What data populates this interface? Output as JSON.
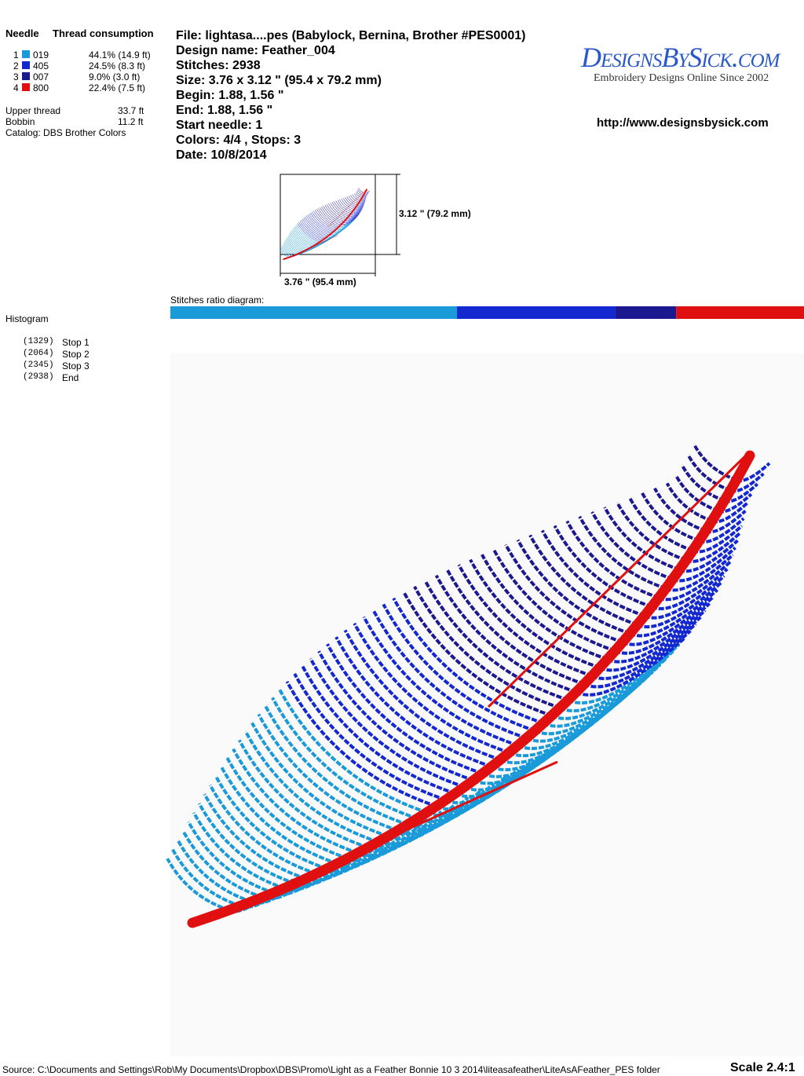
{
  "thread_table": {
    "headers": [
      "Needle",
      "Thread consumption"
    ],
    "rows": [
      {
        "needle": "1",
        "color": "#1a9ad9",
        "code": "019",
        "consumption": "44.1% (14.9 ft)"
      },
      {
        "needle": "2",
        "color": "#1428d0",
        "code": "405",
        "consumption": "24.5% (8.3 ft)"
      },
      {
        "needle": "3",
        "color": "#1c1890",
        "code": "007",
        "consumption": "9.0% (3.0 ft)"
      },
      {
        "needle": "4",
        "color": "#e01010",
        "code": "800",
        "consumption": "22.4% (7.5 ft)"
      }
    ]
  },
  "totals": [
    {
      "label": "Upper thread",
      "value": "33.7 ft"
    },
    {
      "label": "Bobbin",
      "value": "11.2 ft"
    }
  ],
  "catalog": "Catalog: DBS Brother Colors",
  "info": [
    "File: lightasa....pes  (Babylock, Bernina, Brother #PES0001)",
    "Design name: Feather_004",
    "Stitches: 2938",
    "Size: 3.76 x 3.12 \" (95.4 x 79.2 mm)",
    "Begin: 1.88, 1.56 \"",
    "End: 1.88, 1.56 \"",
    "Start needle: 1",
    "Colors: 4/4 , Stops: 3",
    "Date: 10/8/2014"
  ],
  "logo": {
    "title": "DesignsBySick.com",
    "tagline": "Embroidery Designs Online Since 2002"
  },
  "url": "http://www.designsbysick.com",
  "dimensions": {
    "height": "3.12 \" (79.2 mm)",
    "width": "3.76 \" (95.4 mm)"
  },
  "ratio_label": "Stitches ratio diagram:",
  "histogram": {
    "title": "Histogram",
    "stops": [
      {
        "value": 1329,
        "label": "(1329)",
        "name": "Stop 1"
      },
      {
        "value": 2064,
        "label": "(2064)",
        "name": "Stop 2"
      },
      {
        "value": 2345,
        "label": "(2345)",
        "name": "Stop 3"
      },
      {
        "value": 2938,
        "label": "(2938)",
        "name": "End"
      }
    ]
  },
  "footer": {
    "source": "Source: C:\\Documents and Settings\\Rob\\My Documents\\Dropbox\\DBS\\Promo\\Light as a Feather  Bonnie 10 3 2014\\liteasafeather\\LiteAsAFeather_PES folder",
    "scale": "Scale 2.4:1"
  }
}
